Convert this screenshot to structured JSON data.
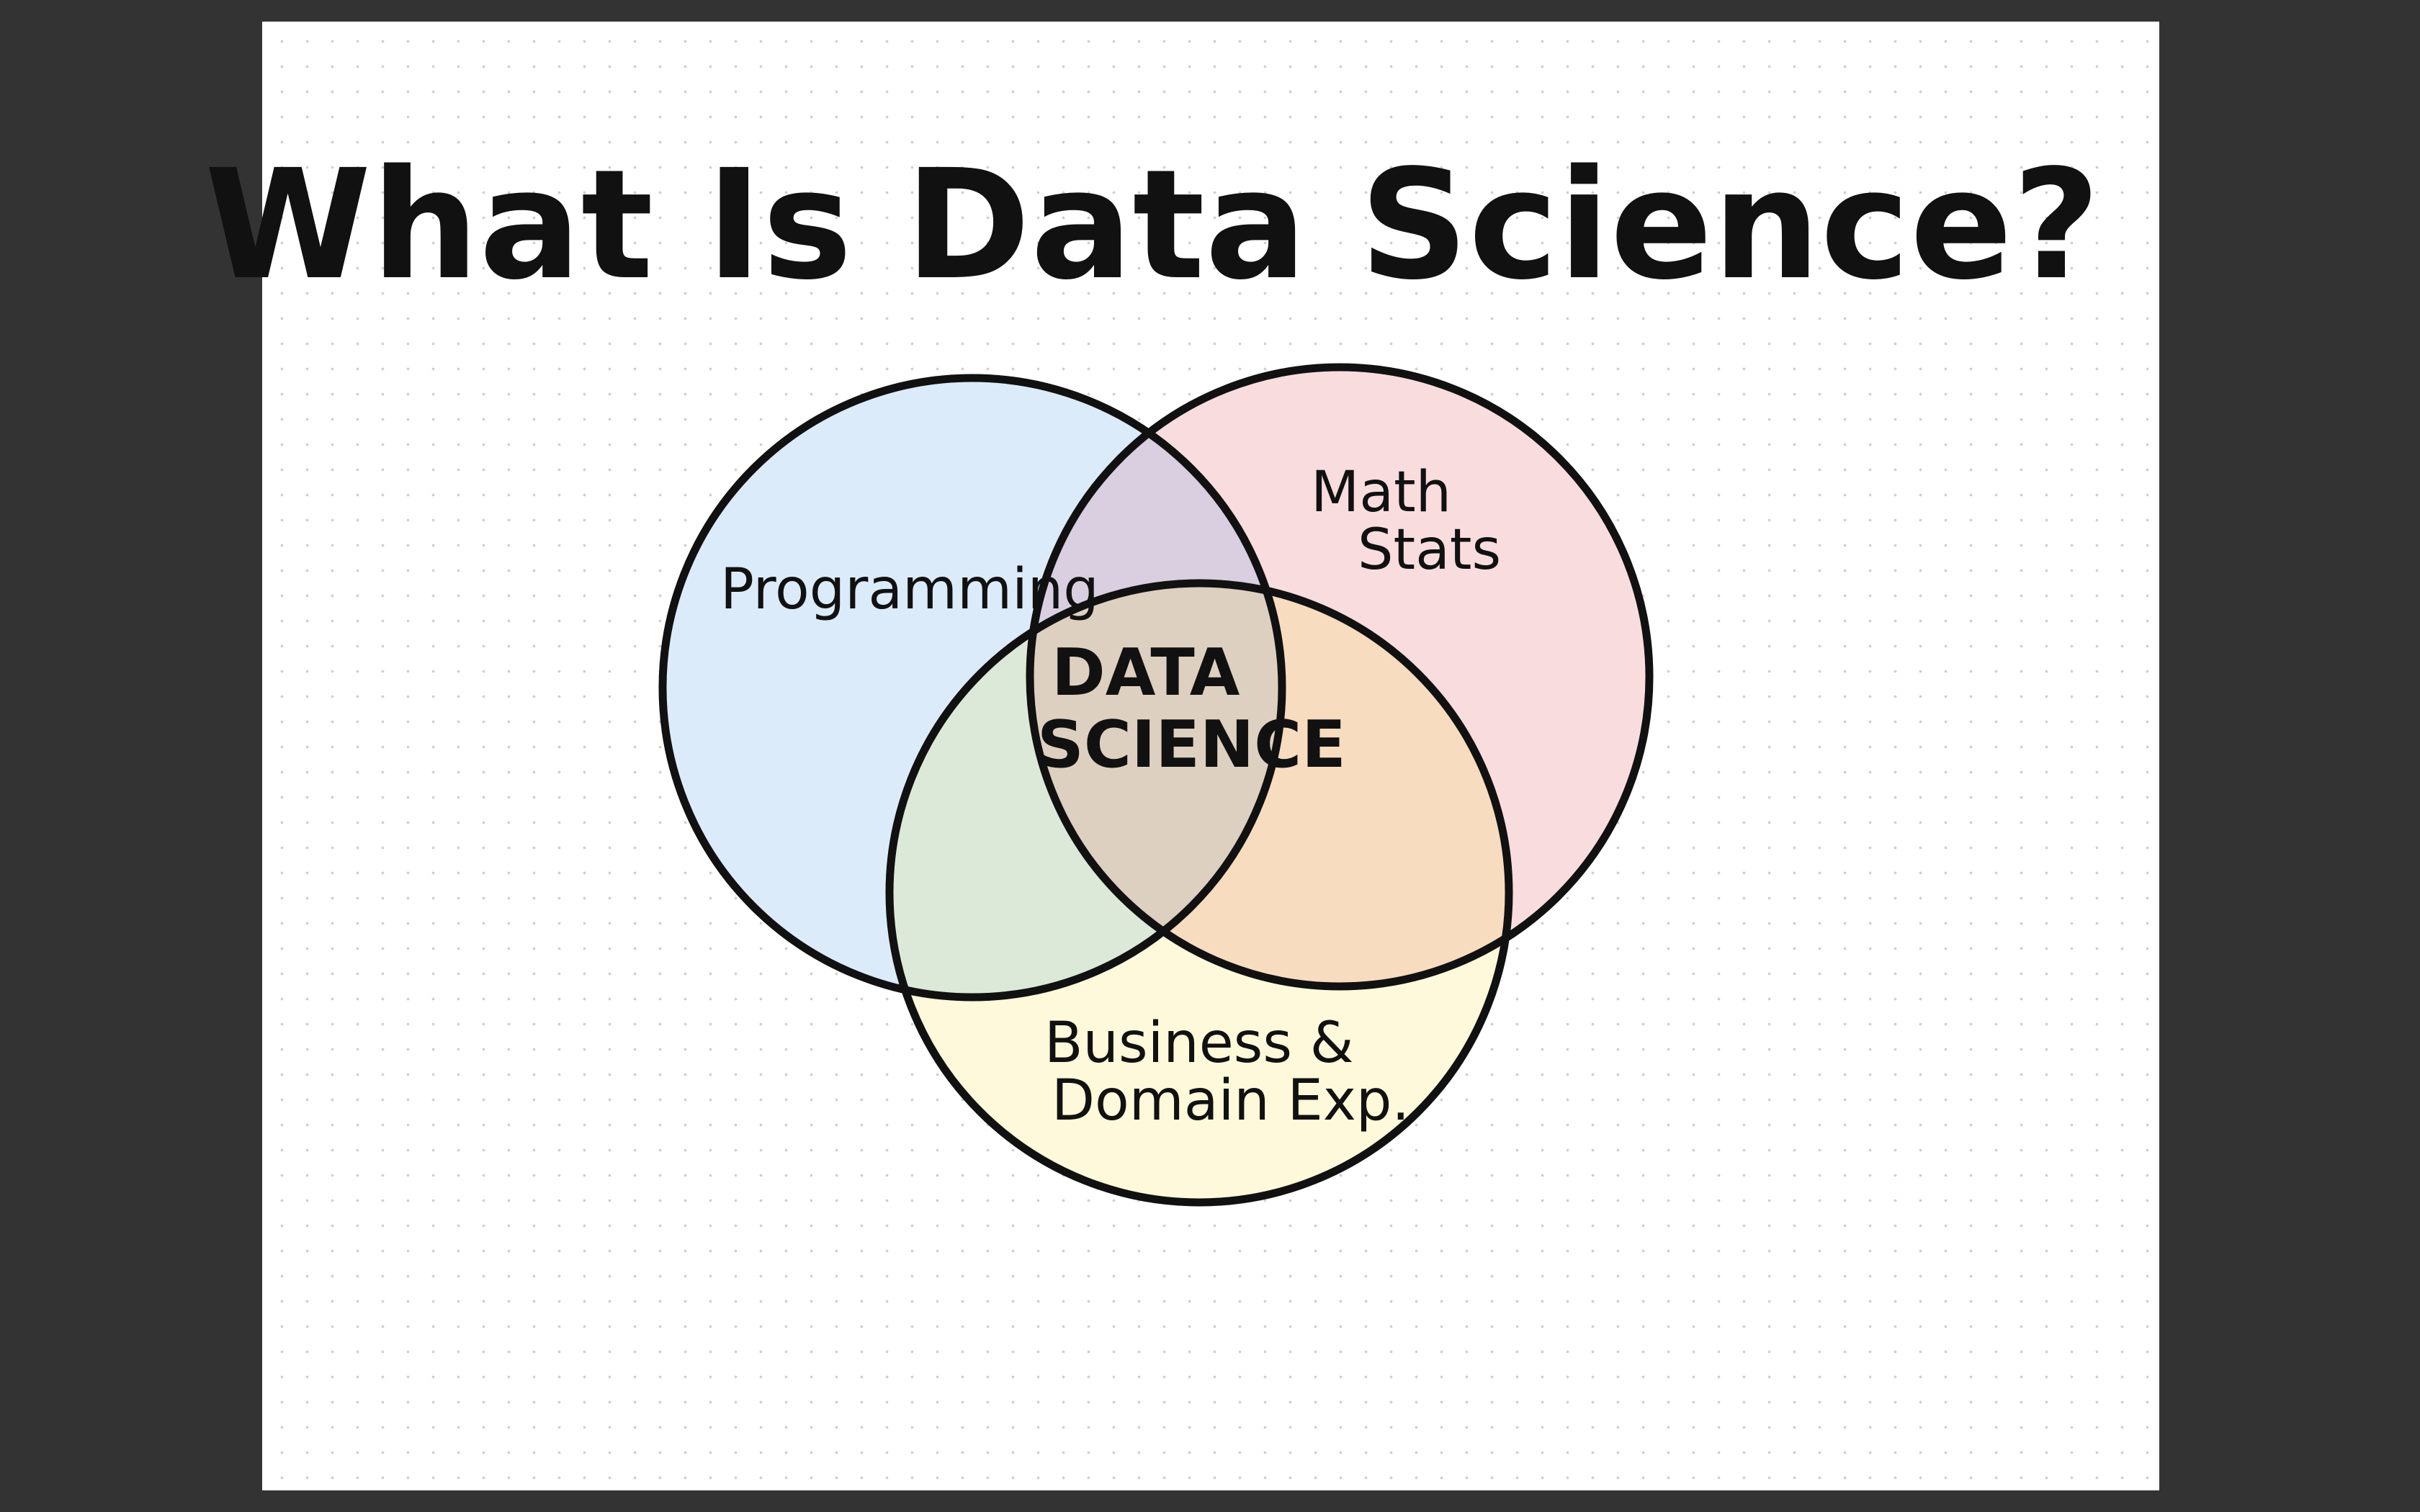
{
  "diagram": {
    "title": "What Is Data Science?",
    "colors": {
      "background": "#333333",
      "page": "#ffffff",
      "programming_fill": "#dcebfa",
      "math_fill": "#f9dcde",
      "business_fill": "#fdf9da",
      "outline": "#111111"
    },
    "sets": [
      {
        "id": "programming",
        "label": "Programming"
      },
      {
        "id": "math",
        "label_lines": [
          "Math",
          "Stats"
        ]
      },
      {
        "id": "business",
        "label_lines": [
          "Business &",
          "Domain Exp."
        ]
      }
    ],
    "intersection": {
      "label_lines": [
        "DATA",
        "SCIENCE"
      ]
    }
  }
}
